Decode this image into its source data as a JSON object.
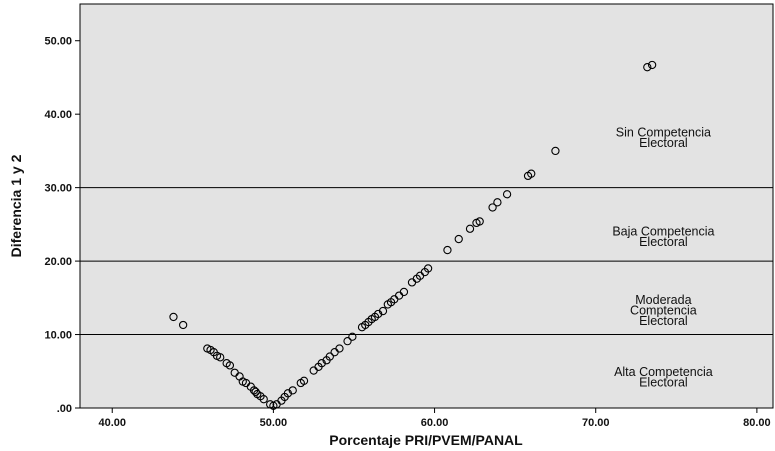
{
  "chart_data": {
    "type": "scatter",
    "xlabel": "Porcentaje PRI/PVEM/PANAL",
    "ylabel": "Diferencia 1 y 2",
    "xlim": [
      38,
      81
    ],
    "ylim": [
      0,
      55
    ],
    "x_ticks": [
      "40.00",
      "50.00",
      "60.00",
      "70.00",
      "80.00"
    ],
    "y_ticks": [
      ".00",
      "10.00",
      "20.00",
      "30.00",
      "40.00",
      "50.00"
    ],
    "x_tick_values": [
      40,
      50,
      60,
      70,
      80
    ],
    "y_tick_values": [
      0,
      10,
      20,
      30,
      40,
      50
    ],
    "grid": false,
    "reference_lines": [
      10,
      20,
      30
    ],
    "zones": [
      {
        "lines": [
          "Sin Competencia",
          "Electoral"
        ],
        "center": [
          74.2,
          36.8
        ]
      },
      {
        "lines": [
          "Baja Competencia",
          "Electoral"
        ],
        "center": [
          74.2,
          23.3
        ]
      },
      {
        "lines": [
          "Moderada",
          "Comptencia",
          "Electoral"
        ],
        "center": [
          74.2,
          13.3
        ]
      },
      {
        "lines": [
          "Alta Competencia",
          "Electoral"
        ],
        "center": [
          74.2,
          4.2
        ]
      }
    ],
    "points": [
      [
        43.8,
        12.4
      ],
      [
        44.4,
        11.3
      ],
      [
        45.9,
        8.1
      ],
      [
        46.1,
        7.9
      ],
      [
        46.3,
        7.6
      ],
      [
        46.5,
        7.1
      ],
      [
        46.7,
        6.9
      ],
      [
        47.1,
        6.1
      ],
      [
        47.3,
        5.8
      ],
      [
        47.6,
        4.8
      ],
      [
        47.9,
        4.3
      ],
      [
        48.1,
        3.6
      ],
      [
        48.3,
        3.4
      ],
      [
        48.6,
        2.9
      ],
      [
        48.8,
        2.4
      ],
      [
        48.9,
        2.2
      ],
      [
        49.0,
        1.9
      ],
      [
        49.2,
        1.6
      ],
      [
        49.4,
        1.2
      ],
      [
        49.8,
        0.5
      ],
      [
        50.0,
        0.3
      ],
      [
        50.2,
        0.5
      ],
      [
        50.5,
        1.0
      ],
      [
        50.7,
        1.5
      ],
      [
        50.9,
        2.0
      ],
      [
        51.2,
        2.4
      ],
      [
        51.7,
        3.4
      ],
      [
        51.9,
        3.7
      ],
      [
        52.5,
        5.1
      ],
      [
        52.8,
        5.6
      ],
      [
        53.0,
        6.1
      ],
      [
        53.3,
        6.5
      ],
      [
        53.5,
        7.0
      ],
      [
        53.8,
        7.6
      ],
      [
        54.1,
        8.1
      ],
      [
        54.6,
        9.1
      ],
      [
        54.9,
        9.7
      ],
      [
        55.5,
        11.0
      ],
      [
        55.7,
        11.3
      ],
      [
        55.9,
        11.7
      ],
      [
        56.1,
        12.1
      ],
      [
        56.3,
        12.4
      ],
      [
        56.5,
        12.8
      ],
      [
        56.8,
        13.2
      ],
      [
        57.1,
        14.1
      ],
      [
        57.3,
        14.4
      ],
      [
        57.5,
        14.8
      ],
      [
        57.8,
        15.3
      ],
      [
        58.1,
        15.8
      ],
      [
        58.6,
        17.1
      ],
      [
        58.9,
        17.6
      ],
      [
        59.1,
        18.0
      ],
      [
        59.4,
        18.5
      ],
      [
        59.6,
        19.0
      ],
      [
        60.8,
        21.5
      ],
      [
        61.5,
        23.0
      ],
      [
        62.2,
        24.4
      ],
      [
        62.6,
        25.2
      ],
      [
        62.8,
        25.4
      ],
      [
        63.6,
        27.3
      ],
      [
        63.9,
        28.0
      ],
      [
        64.5,
        29.1
      ],
      [
        65.8,
        31.6
      ],
      [
        66.0,
        31.9
      ],
      [
        67.5,
        35.0
      ],
      [
        73.2,
        46.4
      ],
      [
        73.5,
        46.7
      ]
    ]
  }
}
